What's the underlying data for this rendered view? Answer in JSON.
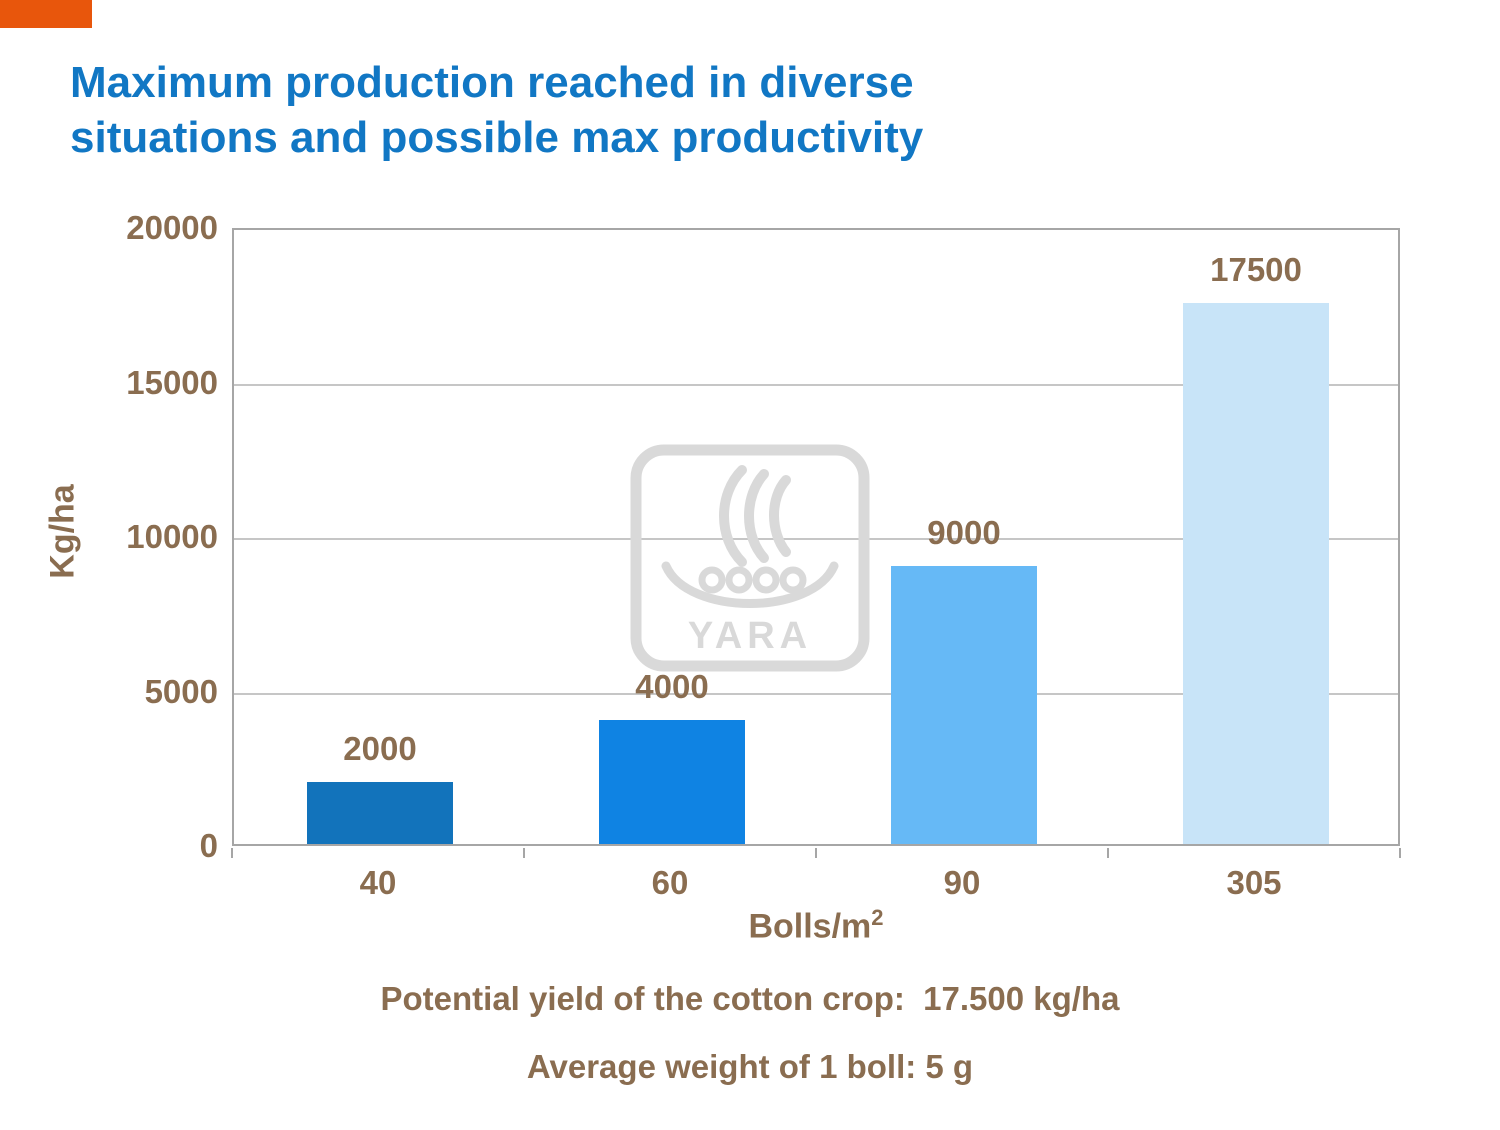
{
  "accent": {
    "corner_bar_color": "#e8560c"
  },
  "header": {
    "title_line1": "Maximum production reached in diverse",
    "title_line2": "situations and possible max productivity",
    "title_color": "#1177c4"
  },
  "chart_data": {
    "type": "bar",
    "title": "Maximum production reached in diverse situations and possible max productivity",
    "categories": [
      "40",
      "60",
      "90",
      "305"
    ],
    "values": [
      2000,
      4000,
      9000,
      17500
    ],
    "bar_value_labels": [
      "2000",
      "4000",
      "9000",
      "17500"
    ],
    "xlabel_base": "Bolls/m",
    "xlabel_sup": "2",
    "ylabel": "Kg/ha",
    "ylim": [
      0,
      20000
    ],
    "yticks": [
      0,
      5000,
      10000,
      15000,
      20000
    ],
    "grid": "horizontal",
    "legend": "none",
    "bar_colors": [
      "#1273bb",
      "#0f83e3",
      "#66b9f6",
      "#c8e4f8"
    ],
    "tick_label_color": "#8a6d50",
    "axis_color": "#a6a6a6",
    "grid_color": "#c6c6c6"
  },
  "watermark": {
    "text": "YARA",
    "color": "#d9d9d9"
  },
  "footnotes": {
    "potential_yield": "Potential yield of the cotton crop:  17.500 kg/ha",
    "boll_weight": "Average weight of 1 boll: 5 g",
    "color": "#8a6d50"
  }
}
